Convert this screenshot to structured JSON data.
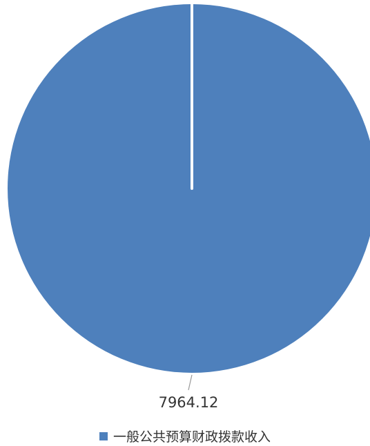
{
  "chart_data": {
    "type": "pie",
    "categories": [
      "一般公共预算财政拨款收入"
    ],
    "values": [
      7964.12
    ],
    "data_labels": [
      "7964.12"
    ],
    "colors": [
      "#4E80BC"
    ],
    "legend_position": "bottom"
  }
}
